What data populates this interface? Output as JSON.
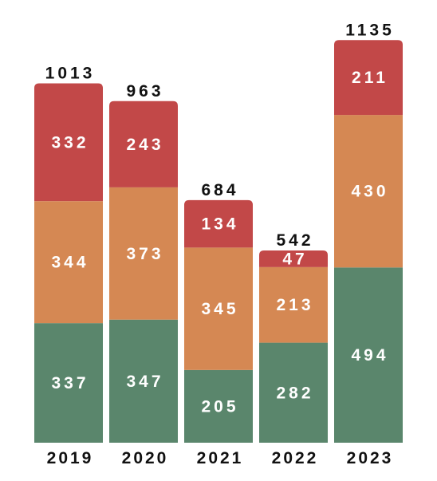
{
  "chart_data": {
    "type": "bar",
    "stacked": true,
    "categories": [
      "2019",
      "2020",
      "2021",
      "2022",
      "2023"
    ],
    "series": [
      {
        "values": [
          337,
          347,
          205,
          282,
          494
        ],
        "color": "#5a866c"
      },
      {
        "values": [
          344,
          373,
          345,
          213,
          430
        ],
        "color": "#d58853"
      },
      {
        "values": [
          332,
          243,
          134,
          47,
          211
        ],
        "color": "#c24848"
      }
    ],
    "totals": [
      1013,
      963,
      684,
      542,
      1135
    ],
    "title": "",
    "xlabel": "",
    "ylabel": "",
    "grid": false,
    "legend": "none"
  }
}
